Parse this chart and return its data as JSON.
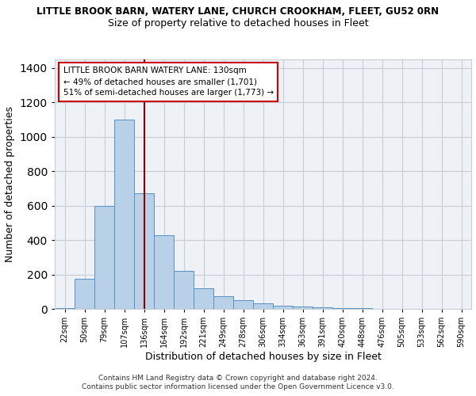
{
  "title1": "LITTLE BROOK BARN, WATERY LANE, CHURCH CROOKHAM, FLEET, GU52 0RN",
  "title2": "Size of property relative to detached houses in Fleet",
  "xlabel": "Distribution of detached houses by size in Fleet",
  "ylabel": "Number of detached properties",
  "categories": [
    "22sqm",
    "50sqm",
    "79sqm",
    "107sqm",
    "136sqm",
    "164sqm",
    "192sqm",
    "221sqm",
    "249sqm",
    "278sqm",
    "306sqm",
    "334sqm",
    "363sqm",
    "391sqm",
    "420sqm",
    "448sqm",
    "476sqm",
    "505sqm",
    "533sqm",
    "562sqm",
    "590sqm"
  ],
  "values": [
    5,
    175,
    600,
    1100,
    670,
    430,
    220,
    120,
    75,
    50,
    30,
    20,
    15,
    10,
    5,
    3,
    2,
    1,
    1,
    1,
    1
  ],
  "bar_color": "#b8d0e8",
  "bar_edge_color": "#5a8fc0",
  "vline_color": "#8b0000",
  "annotation_text": "LITTLE BROOK BARN WATERY LANE: 130sqm\n← 49% of detached houses are smaller (1,701)\n51% of semi-detached houses are larger (1,773) →",
  "annotation_box_facecolor": "#ffffff",
  "annotation_box_edgecolor": "#cc0000",
  "ylim": [
    0,
    1450
  ],
  "yticks": [
    0,
    200,
    400,
    600,
    800,
    1000,
    1200,
    1400
  ],
  "footer1": "Contains HM Land Registry data © Crown copyright and database right 2024.",
  "footer2": "Contains public sector information licensed under the Open Government Licence v3.0.",
  "bg_color": "#eef2f7",
  "grid_color": "#c8cdd4"
}
